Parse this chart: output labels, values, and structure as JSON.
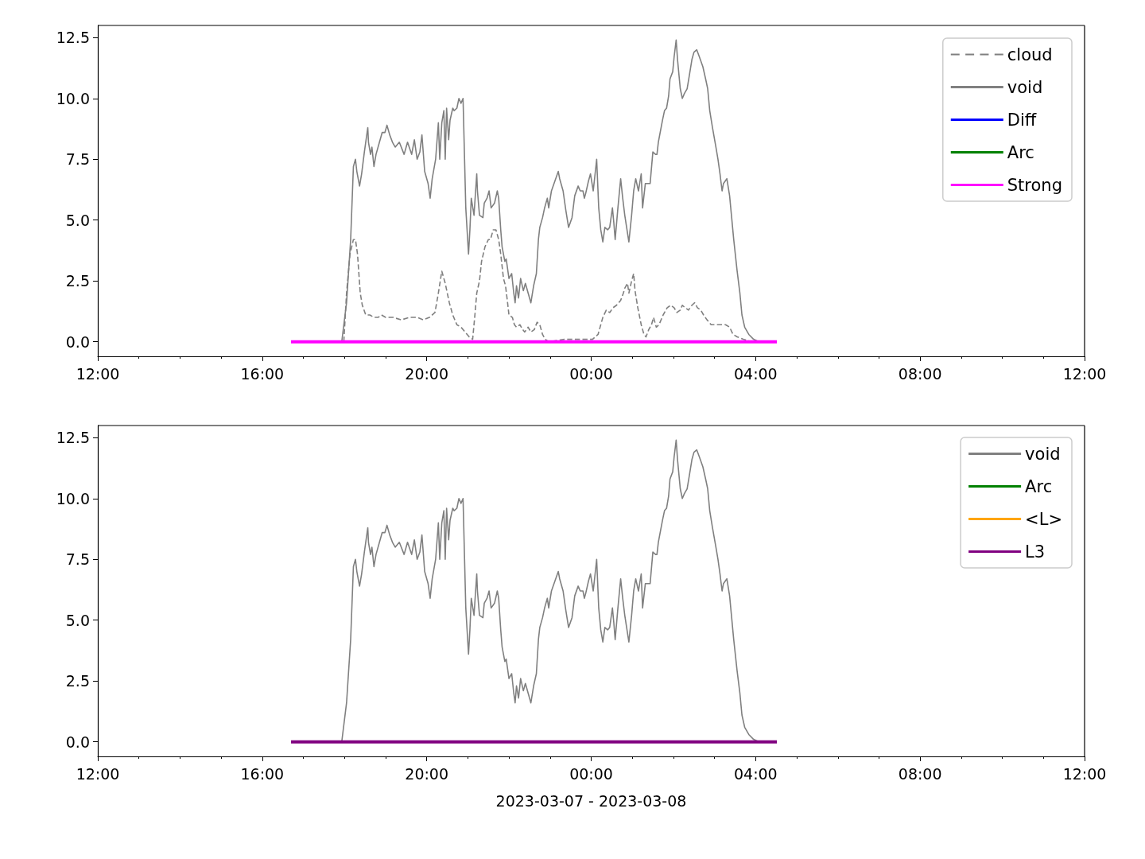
{
  "chart_data": [
    {
      "type": "line",
      "xlim": [
        "2023-03-07T12:00",
        "2023-03-08T12:00"
      ],
      "xticks": [
        {
          "value": "2023-03-07T12:00",
          "label": "12:00"
        },
        {
          "value": "2023-03-07T16:00",
          "label": "16:00"
        },
        {
          "value": "2023-03-07T20:00",
          "label": "20:00"
        },
        {
          "value": "2023-03-08T00:00",
          "label": "00:00"
        },
        {
          "value": "2023-03-08T04:00",
          "label": "04:00"
        },
        {
          "value": "2023-03-08T08:00",
          "label": "08:00"
        },
        {
          "value": "2023-03-08T12:00",
          "label": "12:00"
        }
      ],
      "ylim": [
        -0.6,
        13.0
      ],
      "yticks": [
        {
          "value": 0,
          "label": "0.0"
        },
        {
          "value": 2.5,
          "label": "2.5"
        },
        {
          "value": 5,
          "label": "5.0"
        },
        {
          "value": 7.5,
          "label": "7.5"
        },
        {
          "value": 10,
          "label": "10.0"
        },
        {
          "value": 12.5,
          "label": "12.5"
        }
      ],
      "grid": false,
      "legend": "top right",
      "marker": "none",
      "series": [
        {
          "name": "cloud",
          "color": "#808080",
          "line_style": "dashed",
          "x": [
            "2023-03-07T17:59",
            "2023-03-07T18:03",
            "2023-03-07T18:08",
            "2023-03-07T18:13",
            "2023-03-07T18:16",
            "2023-03-07T18:19",
            "2023-03-07T18:23",
            "2023-03-07T18:26",
            "2023-03-07T18:31",
            "2023-03-07T18:37",
            "2023-03-07T18:43",
            "2023-03-07T18:49",
            "2023-03-07T18:54",
            "2023-03-07T19:00",
            "2023-03-07T19:11",
            "2023-03-07T19:23",
            "2023-03-07T19:35",
            "2023-03-07T19:46",
            "2023-03-07T19:55",
            "2023-03-07T20:04",
            "2023-03-07T20:12",
            "2023-03-07T20:17",
            "2023-03-07T20:22",
            "2023-03-07T20:27",
            "2023-03-07T20:33",
            "2023-03-07T20:38",
            "2023-03-07T20:44",
            "2023-03-07T20:50",
            "2023-03-07T20:56",
            "2023-03-07T21:02",
            "2023-03-07T21:07",
            "2023-03-07T21:10",
            "2023-03-07T21:13",
            "2023-03-07T21:17",
            "2023-03-07T21:20",
            "2023-03-07T21:25",
            "2023-03-07T21:30",
            "2023-03-07T21:33",
            "2023-03-07T21:37",
            "2023-03-07T21:41",
            "2023-03-07T21:45",
            "2023-03-07T21:48",
            "2023-03-07T21:52",
            "2023-03-07T21:55",
            "2023-03-07T21:58",
            "2023-03-07T22:00",
            "2023-03-07T22:05",
            "2023-03-07T22:08",
            "2023-03-07T22:11",
            "2023-03-07T22:16",
            "2023-03-07T22:20",
            "2023-03-07T22:23",
            "2023-03-07T22:28",
            "2023-03-07T22:32",
            "2023-03-07T22:37",
            "2023-03-07T22:41",
            "2023-03-07T22:45",
            "2023-03-07T22:49",
            "2023-03-07T22:53",
            "2023-03-07T22:58",
            "2023-03-07T23:21",
            "2023-03-07T23:44",
            "2023-03-08T00:02",
            "2023-03-08T00:10",
            "2023-03-08T00:17",
            "2023-03-08T00:22",
            "2023-03-08T00:27",
            "2023-03-08T00:32",
            "2023-03-08T00:37",
            "2023-03-08T00:43",
            "2023-03-08T00:47",
            "2023-03-08T00:49",
            "2023-03-08T00:53",
            "2023-03-08T00:55",
            "2023-03-08T00:59",
            "2023-03-08T01:02",
            "2023-03-08T01:04",
            "2023-03-08T01:08",
            "2023-03-08T01:13",
            "2023-03-08T01:17",
            "2023-03-08T01:20",
            "2023-03-08T01:24",
            "2023-03-08T01:28",
            "2023-03-08T01:31",
            "2023-03-08T01:35",
            "2023-03-08T01:39",
            "2023-03-08T01:45",
            "2023-03-08T01:51",
            "2023-03-08T01:56",
            "2023-03-08T02:01",
            "2023-03-08T02:05",
            "2023-03-08T02:10",
            "2023-03-08T02:13",
            "2023-03-08T02:17",
            "2023-03-08T02:22",
            "2023-03-08T02:27",
            "2023-03-08T02:31",
            "2023-03-08T02:35",
            "2023-03-08T02:40",
            "2023-03-08T02:44",
            "2023-03-08T02:49",
            "2023-03-08T02:55",
            "2023-03-08T03:01",
            "2023-03-08T03:07",
            "2023-03-08T03:16",
            "2023-03-08T03:22",
            "2023-03-08T03:27",
            "2023-03-08T03:33",
            "2023-03-08T03:42",
            "2023-03-08T03:54"
          ],
          "values": [
            0,
            2.0,
            3.6,
            4.2,
            4.2,
            3.6,
            2.0,
            1.5,
            1.1,
            1.1,
            1.0,
            1.0,
            1.1,
            1.0,
            1.0,
            0.9,
            1.0,
            1.0,
            0.9,
            1.0,
            1.2,
            2.0,
            2.9,
            2.4,
            1.6,
            1.1,
            0.7,
            0.6,
            0.4,
            0.2,
            0.1,
            1.0,
            2.0,
            2.5,
            3.3,
            3.9,
            4.2,
            4.2,
            4.6,
            4.6,
            4.2,
            3.6,
            2.6,
            2.3,
            1.6,
            1.1,
            1.0,
            0.7,
            0.6,
            0.7,
            0.5,
            0.4,
            0.6,
            0.4,
            0.5,
            0.8,
            0.7,
            0.3,
            0.1,
            0,
            0.1,
            0.1,
            0.1,
            0.3,
            1.0,
            1.3,
            1.2,
            1.4,
            1.5,
            1.7,
            2.0,
            2.2,
            2.4,
            2.0,
            2.5,
            2.8,
            2.1,
            1.4,
            0.7,
            0.3,
            0.2,
            0.5,
            0.7,
            1.0,
            0.6,
            0.7,
            1.1,
            1.4,
            1.5,
            1.4,
            1.2,
            1.3,
            1.5,
            1.4,
            1.3,
            1.5,
            1.6,
            1.4,
            1.3,
            1.1,
            0.9,
            0.7,
            0.7,
            0.7,
            0.7,
            0.6,
            0.3,
            0.2,
            0.1,
            0
          ]
        },
        {
          "name": "void",
          "color": "#808080",
          "x": [
            "2023-03-07T17:56",
            "2023-03-07T18:03",
            "2023-03-07T18:09",
            "2023-03-07T18:13",
            "2023-03-07T18:16",
            "2023-03-07T18:18",
            "2023-03-07T18:22",
            "2023-03-07T18:25",
            "2023-03-07T18:29",
            "2023-03-07T18:34",
            "2023-03-07T18:35",
            "2023-03-07T18:38",
            "2023-03-07T18:40",
            "2023-03-07T18:43",
            "2023-03-07T18:46",
            "2023-03-07T18:51",
            "2023-03-07T18:55",
            "2023-03-07T18:59",
            "2023-03-07T19:02",
            "2023-03-07T19:06",
            "2023-03-07T19:10",
            "2023-03-07T19:14",
            "2023-03-07T19:20",
            "2023-03-07T19:27",
            "2023-03-07T19:32",
            "2023-03-07T19:38",
            "2023-03-07T19:42",
            "2023-03-07T19:46",
            "2023-03-07T19:50",
            "2023-03-07T19:53",
            "2023-03-07T19:57",
            "2023-03-07T20:02",
            "2023-03-07T20:05",
            "2023-03-07T20:08",
            "2023-03-07T20:13",
            "2023-03-07T20:17",
            "2023-03-07T20:19",
            "2023-03-07T20:22",
            "2023-03-07T20:25",
            "2023-03-07T20:27",
            "2023-03-07T20:29",
            "2023-03-07T20:32",
            "2023-03-07T20:34",
            "2023-03-07T20:38",
            "2023-03-07T20:40",
            "2023-03-07T20:44",
            "2023-03-07T20:47",
            "2023-03-07T20:50",
            "2023-03-07T20:53",
            "2023-03-07T20:57",
            "2023-03-07T21:01",
            "2023-03-07T21:03",
            "2023-03-07T21:05",
            "2023-03-07T21:09",
            "2023-03-07T21:13",
            "2023-03-07T21:14",
            "2023-03-07T21:17",
            "2023-03-07T21:22",
            "2023-03-07T21:24",
            "2023-03-07T21:28",
            "2023-03-07T21:31",
            "2023-03-07T21:34",
            "2023-03-07T21:39",
            "2023-03-07T21:43",
            "2023-03-07T21:45",
            "2023-03-07T21:48",
            "2023-03-07T21:50",
            "2023-03-07T21:54",
            "2023-03-07T21:56",
            "2023-03-07T22:00",
            "2023-03-07T22:04",
            "2023-03-07T22:07",
            "2023-03-07T22:09",
            "2023-03-07T22:11",
            "2023-03-07T22:14",
            "2023-03-07T22:17",
            "2023-03-07T22:21",
            "2023-03-07T22:24",
            "2023-03-07T22:28",
            "2023-03-07T22:32",
            "2023-03-07T22:36",
            "2023-03-07T22:40",
            "2023-03-07T22:43",
            "2023-03-07T22:45",
            "2023-03-07T22:49",
            "2023-03-07T22:52",
            "2023-03-07T22:56",
            "2023-03-07T22:58",
            "2023-03-07T23:02",
            "2023-03-07T23:07",
            "2023-03-07T23:12",
            "2023-03-07T23:14",
            "2023-03-07T23:19",
            "2023-03-07T23:23",
            "2023-03-07T23:27",
            "2023-03-07T23:32",
            "2023-03-07T23:36",
            "2023-03-07T23:41",
            "2023-03-07T23:44",
            "2023-03-07T23:48",
            "2023-03-07T23:50",
            "2023-03-07T23:52",
            "2023-03-07T23:56",
            "2023-03-07T23:59",
            "2023-03-08T00:03",
            "2023-03-08T00:08",
            "2023-03-08T00:11",
            "2023-03-08T00:14",
            "2023-03-08T00:17",
            "2023-03-08T00:20",
            "2023-03-08T00:24",
            "2023-03-08T00:27",
            "2023-03-08T00:31",
            "2023-03-08T00:33",
            "2023-03-08T00:35",
            "2023-03-08T00:39",
            "2023-03-08T00:43",
            "2023-03-08T00:46",
            "2023-03-08T00:49",
            "2023-03-08T00:55",
            "2023-03-08T00:59",
            "2023-03-08T01:02",
            "2023-03-08T01:05",
            "2023-03-08T01:09",
            "2023-03-08T01:13",
            "2023-03-08T01:15",
            "2023-03-08T01:19",
            "2023-03-08T01:26",
            "2023-03-08T01:30",
            "2023-03-08T01:34",
            "2023-03-08T01:36",
            "2023-03-08T01:38",
            "2023-03-08T01:40",
            "2023-03-08T01:44",
            "2023-03-08T01:47",
            "2023-03-08T01:50",
            "2023-03-08T01:53",
            "2023-03-08T01:55",
            "2023-03-08T01:59",
            "2023-03-08T02:01",
            "2023-03-08T02:04",
            "2023-03-08T02:06",
            "2023-03-08T02:10",
            "2023-03-08T02:13",
            "2023-03-08T02:16",
            "2023-03-08T02:20",
            "2023-03-08T02:23",
            "2023-03-08T02:27",
            "2023-03-08T02:30",
            "2023-03-08T02:34",
            "2023-03-08T02:38",
            "2023-03-08T02:43",
            "2023-03-08T02:47",
            "2023-03-08T02:50",
            "2023-03-08T02:53",
            "2023-03-08T02:57",
            "2023-03-08T03:02",
            "2023-03-08T03:05",
            "2023-03-08T03:08",
            "2023-03-08T03:11",
            "2023-03-08T03:13",
            "2023-03-08T03:18",
            "2023-03-08T03:22",
            "2023-03-08T03:25",
            "2023-03-08T03:28",
            "2023-03-08T03:33",
            "2023-03-08T03:37",
            "2023-03-08T03:40",
            "2023-03-08T03:44",
            "2023-03-08T03:50",
            "2023-03-08T03:57",
            "2023-03-08T04:05"
          ],
          "values": [
            0,
            1.6,
            4.2,
            7.2,
            7.5,
            7.0,
            6.4,
            6.9,
            7.8,
            8.8,
            8.2,
            7.7,
            8.0,
            7.2,
            7.7,
            8.2,
            8.6,
            8.6,
            8.9,
            8.5,
            8.2,
            8.0,
            8.2,
            7.7,
            8.2,
            7.7,
            8.3,
            7.5,
            7.8,
            8.5,
            7.0,
            6.5,
            5.9,
            6.7,
            7.5,
            9.0,
            7.5,
            9.0,
            9.5,
            7.5,
            9.6,
            8.3,
            9.1,
            9.6,
            9.5,
            9.6,
            10.0,
            9.8,
            10.0,
            5.5,
            3.6,
            4.6,
            5.9,
            5.2,
            6.9,
            6.2,
            5.2,
            5.1,
            5.7,
            5.9,
            6.2,
            5.5,
            5.7,
            6.2,
            5.9,
            4.6,
            3.9,
            3.3,
            3.4,
            2.6,
            2.8,
            2.0,
            1.6,
            2.3,
            1.8,
            2.6,
            2.1,
            2.4,
            2.0,
            1.6,
            2.3,
            2.8,
            4.2,
            4.7,
            5.1,
            5.5,
            5.9,
            5.5,
            6.2,
            6.6,
            7.0,
            6.7,
            6.2,
            5.4,
            4.7,
            5.1,
            6.0,
            6.4,
            6.2,
            6.2,
            5.9,
            6.1,
            6.6,
            6.9,
            6.2,
            7.5,
            5.5,
            4.6,
            4.1,
            4.7,
            4.6,
            4.7,
            5.5,
            4.9,
            4.2,
            5.5,
            6.7,
            5.9,
            5.2,
            4.1,
            5.2,
            6.2,
            6.7,
            6.2,
            6.9,
            5.5,
            6.5,
            6.5,
            7.8,
            7.7,
            7.7,
            8.2,
            8.5,
            9.1,
            9.5,
            9.6,
            10.1,
            10.8,
            11.1,
            11.7,
            12.4,
            11.6,
            10.4,
            10.0,
            10.2,
            10.4,
            10.9,
            11.6,
            11.9,
            12.0,
            11.7,
            11.3,
            10.8,
            10.4,
            9.5,
            8.8,
            8.0,
            7.5,
            6.9,
            6.2,
            6.5,
            6.7,
            6.0,
            5.1,
            4.2,
            2.9,
            2.0,
            1.1,
            0.6,
            0.3,
            0.1,
            0
          ]
        },
        {
          "name": "Diff",
          "color": "#0000ff"
        },
        {
          "name": "Arc",
          "color": "#008000"
        },
        {
          "name": "Strong",
          "color": "#ff00ff",
          "x": [
            "2023-03-07T16:42",
            "2023-03-08T04:31"
          ],
          "values": [
            0,
            0
          ]
        }
      ]
    },
    {
      "type": "line",
      "xlim": [
        "2023-03-07T12:00",
        "2023-03-08T12:00"
      ],
      "xticks": [
        {
          "value": "2023-03-07T12:00",
          "label": "12:00"
        },
        {
          "value": "2023-03-07T16:00",
          "label": "16:00"
        },
        {
          "value": "2023-03-07T20:00",
          "label": "20:00"
        },
        {
          "value": "2023-03-08T00:00",
          "label": "00:00"
        },
        {
          "value": "2023-03-08T04:00",
          "label": "04:00"
        },
        {
          "value": "2023-03-08T08:00",
          "label": "08:00"
        },
        {
          "value": "2023-03-08T12:00",
          "label": "12:00"
        }
      ],
      "ylim": [
        -0.6,
        13.0
      ],
      "yticks": [
        {
          "value": 0,
          "label": "0.0"
        },
        {
          "value": 2.5,
          "label": "2.5"
        },
        {
          "value": 5,
          "label": "5.0"
        },
        {
          "value": 7.5,
          "label": "7.5"
        },
        {
          "value": 10,
          "label": "10.0"
        },
        {
          "value": 12.5,
          "label": "12.5"
        }
      ],
      "xlabel": "2023-03-07 - 2023-03-08",
      "grid": false,
      "legend": "top right",
      "marker": "none",
      "series": [
        {
          "name": "void",
          "color": "#808080",
          "x": [
            "2023-03-07T17:56",
            "2023-03-07T18:03",
            "2023-03-07T18:09",
            "2023-03-07T18:13",
            "2023-03-07T18:16",
            "2023-03-07T18:18",
            "2023-03-07T18:22",
            "2023-03-07T18:25",
            "2023-03-07T18:29",
            "2023-03-07T18:34",
            "2023-03-07T18:35",
            "2023-03-07T18:38",
            "2023-03-07T18:40",
            "2023-03-07T18:43",
            "2023-03-07T18:46",
            "2023-03-07T18:51",
            "2023-03-07T18:55",
            "2023-03-07T18:59",
            "2023-03-07T19:02",
            "2023-03-07T19:06",
            "2023-03-07T19:10",
            "2023-03-07T19:14",
            "2023-03-07T19:20",
            "2023-03-07T19:27",
            "2023-03-07T19:32",
            "2023-03-07T19:38",
            "2023-03-07T19:42",
            "2023-03-07T19:46",
            "2023-03-07T19:50",
            "2023-03-07T19:53",
            "2023-03-07T19:57",
            "2023-03-07T20:02",
            "2023-03-07T20:05",
            "2023-03-07T20:08",
            "2023-03-07T20:13",
            "2023-03-07T20:17",
            "2023-03-07T20:19",
            "2023-03-07T20:22",
            "2023-03-07T20:25",
            "2023-03-07T20:27",
            "2023-03-07T20:29",
            "2023-03-07T20:32",
            "2023-03-07T20:34",
            "2023-03-07T20:38",
            "2023-03-07T20:40",
            "2023-03-07T20:44",
            "2023-03-07T20:47",
            "2023-03-07T20:50",
            "2023-03-07T20:53",
            "2023-03-07T20:57",
            "2023-03-07T21:01",
            "2023-03-07T21:03",
            "2023-03-07T21:05",
            "2023-03-07T21:09",
            "2023-03-07T21:13",
            "2023-03-07T21:14",
            "2023-03-07T21:17",
            "2023-03-07T21:22",
            "2023-03-07T21:24",
            "2023-03-07T21:28",
            "2023-03-07T21:31",
            "2023-03-07T21:34",
            "2023-03-07T21:39",
            "2023-03-07T21:43",
            "2023-03-07T21:45",
            "2023-03-07T21:48",
            "2023-03-07T21:50",
            "2023-03-07T21:54",
            "2023-03-07T21:56",
            "2023-03-07T22:00",
            "2023-03-07T22:04",
            "2023-03-07T22:07",
            "2023-03-07T22:09",
            "2023-03-07T22:11",
            "2023-03-07T22:14",
            "2023-03-07T22:17",
            "2023-03-07T22:21",
            "2023-03-07T22:24",
            "2023-03-07T22:28",
            "2023-03-07T22:32",
            "2023-03-07T22:36",
            "2023-03-07T22:40",
            "2023-03-07T22:43",
            "2023-03-07T22:45",
            "2023-03-07T22:49",
            "2023-03-07T22:52",
            "2023-03-07T22:56",
            "2023-03-07T22:58",
            "2023-03-07T23:02",
            "2023-03-07T23:07",
            "2023-03-07T23:12",
            "2023-03-07T23:14",
            "2023-03-07T23:19",
            "2023-03-07T23:23",
            "2023-03-07T23:27",
            "2023-03-07T23:32",
            "2023-03-07T23:36",
            "2023-03-07T23:41",
            "2023-03-07T23:44",
            "2023-03-07T23:48",
            "2023-03-07T23:50",
            "2023-03-07T23:52",
            "2023-03-07T23:56",
            "2023-03-07T23:59",
            "2023-03-08T00:03",
            "2023-03-08T00:08",
            "2023-03-08T00:11",
            "2023-03-08T00:14",
            "2023-03-08T00:17",
            "2023-03-08T00:20",
            "2023-03-08T00:24",
            "2023-03-08T00:27",
            "2023-03-08T00:31",
            "2023-03-08T00:33",
            "2023-03-08T00:35",
            "2023-03-08T00:39",
            "2023-03-08T00:43",
            "2023-03-08T00:46",
            "2023-03-08T00:49",
            "2023-03-08T00:55",
            "2023-03-08T00:59",
            "2023-03-08T01:02",
            "2023-03-08T01:05",
            "2023-03-08T01:09",
            "2023-03-08T01:13",
            "2023-03-08T01:15",
            "2023-03-08T01:19",
            "2023-03-08T01:26",
            "2023-03-08T01:30",
            "2023-03-08T01:34",
            "2023-03-08T01:36",
            "2023-03-08T01:38",
            "2023-03-08T01:40",
            "2023-03-08T01:44",
            "2023-03-08T01:47",
            "2023-03-08T01:50",
            "2023-03-08T01:53",
            "2023-03-08T01:55",
            "2023-03-08T01:59",
            "2023-03-08T02:01",
            "2023-03-08T02:04",
            "2023-03-08T02:06",
            "2023-03-08T02:10",
            "2023-03-08T02:13",
            "2023-03-08T02:16",
            "2023-03-08T02:20",
            "2023-03-08T02:23",
            "2023-03-08T02:27",
            "2023-03-08T02:30",
            "2023-03-08T02:34",
            "2023-03-08T02:38",
            "2023-03-08T02:43",
            "2023-03-08T02:47",
            "2023-03-08T02:50",
            "2023-03-08T02:53",
            "2023-03-08T02:57",
            "2023-03-08T03:02",
            "2023-03-08T03:05",
            "2023-03-08T03:08",
            "2023-03-08T03:11",
            "2023-03-08T03:13",
            "2023-03-08T03:18",
            "2023-03-08T03:22",
            "2023-03-08T03:25",
            "2023-03-08T03:28",
            "2023-03-08T03:33",
            "2023-03-08T03:37",
            "2023-03-08T03:40",
            "2023-03-08T03:44",
            "2023-03-08T03:50",
            "2023-03-08T03:57",
            "2023-03-08T04:05"
          ],
          "values": [
            0,
            1.6,
            4.2,
            7.2,
            7.5,
            7.0,
            6.4,
            6.9,
            7.8,
            8.8,
            8.2,
            7.7,
            8.0,
            7.2,
            7.7,
            8.2,
            8.6,
            8.6,
            8.9,
            8.5,
            8.2,
            8.0,
            8.2,
            7.7,
            8.2,
            7.7,
            8.3,
            7.5,
            7.8,
            8.5,
            7.0,
            6.5,
            5.9,
            6.7,
            7.5,
            9.0,
            7.5,
            9.0,
            9.5,
            7.5,
            9.6,
            8.3,
            9.1,
            9.6,
            9.5,
            9.6,
            10.0,
            9.8,
            10.0,
            5.5,
            3.6,
            4.6,
            5.9,
            5.2,
            6.9,
            6.2,
            5.2,
            5.1,
            5.7,
            5.9,
            6.2,
            5.5,
            5.7,
            6.2,
            5.9,
            4.6,
            3.9,
            3.3,
            3.4,
            2.6,
            2.8,
            2.0,
            1.6,
            2.3,
            1.8,
            2.6,
            2.1,
            2.4,
            2.0,
            1.6,
            2.3,
            2.8,
            4.2,
            4.7,
            5.1,
            5.5,
            5.9,
            5.5,
            6.2,
            6.6,
            7.0,
            6.7,
            6.2,
            5.4,
            4.7,
            5.1,
            6.0,
            6.4,
            6.2,
            6.2,
            5.9,
            6.1,
            6.6,
            6.9,
            6.2,
            7.5,
            5.5,
            4.6,
            4.1,
            4.7,
            4.6,
            4.7,
            5.5,
            4.9,
            4.2,
            5.5,
            6.7,
            5.9,
            5.2,
            4.1,
            5.2,
            6.2,
            6.7,
            6.2,
            6.9,
            5.5,
            6.5,
            6.5,
            7.8,
            7.7,
            7.7,
            8.2,
            8.5,
            9.1,
            9.5,
            9.6,
            10.1,
            10.8,
            11.1,
            11.7,
            12.4,
            11.6,
            10.4,
            10.0,
            10.2,
            10.4,
            10.9,
            11.6,
            11.9,
            12.0,
            11.7,
            11.3,
            10.8,
            10.4,
            9.5,
            8.8,
            8.0,
            7.5,
            6.9,
            6.2,
            6.5,
            6.7,
            6.0,
            5.1,
            4.2,
            2.9,
            2.0,
            1.1,
            0.6,
            0.3,
            0.1,
            0
          ]
        },
        {
          "name": "Arc",
          "color": "#008000"
        },
        {
          "name": "<L>",
          "color": "#ffa500"
        },
        {
          "name": "L3",
          "color": "#800080",
          "x": [
            "2023-03-07T16:42",
            "2023-03-08T04:31"
          ],
          "values": [
            0,
            0
          ]
        }
      ]
    }
  ]
}
